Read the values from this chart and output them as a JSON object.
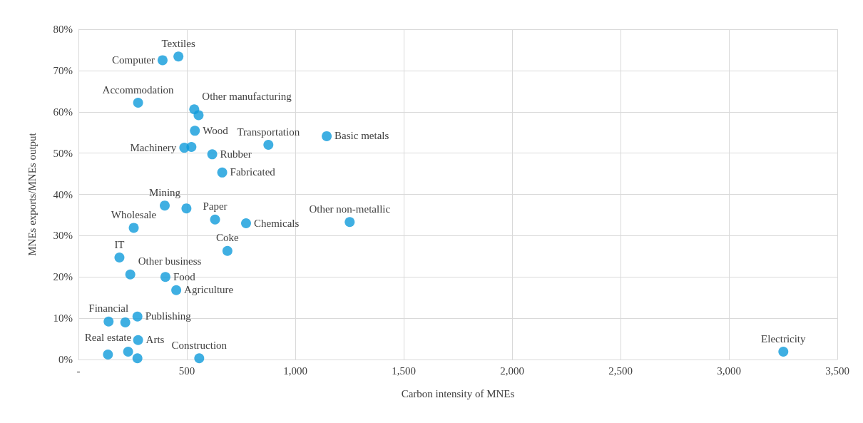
{
  "chart_data": {
    "type": "scatter",
    "xlabel": "Carbon intensity of MNEs",
    "ylabel": "MNEs exports/MNEs output",
    "x": [
      388,
      461,
      275,
      534,
      554,
      537,
      488,
      521,
      617,
      663,
      876,
      1145,
      398,
      498,
      630,
      773,
      1251,
      255,
      687,
      189,
      239,
      401,
      451,
      139,
      272,
      216,
      275,
      136,
      229,
      272,
      557,
      3251
    ],
    "series": [
      {
        "color": "#0f9bdb",
        "values": [
          72.5,
          73.4,
          62.2,
          60.6,
          59.2,
          55.4,
          51.3,
          51.5,
          49.7,
          45.3,
          52.0,
          54.1,
          37.3,
          36.6,
          33.9,
          33.0,
          33.3,
          31.9,
          26.3,
          24.7,
          20.6,
          20.0,
          16.8,
          9.2,
          10.4,
          9.0,
          4.7,
          1.2,
          1.9,
          0.3,
          0.3,
          1.9
        ]
      }
    ],
    "annotations": [
      {
        "text": "Computer",
        "x": 388,
        "y": 72.5
      },
      {
        "text": "Textiles",
        "x": 461,
        "y": 73.4
      },
      {
        "text": "Accommodation",
        "x": 275,
        "y": 62.2
      },
      {
        "text": "Other manufacturing",
        "x": 534,
        "y": 60.6
      },
      {
        "text": "Wood",
        "x": 537,
        "y": 55.4
      },
      {
        "text": "Machinery",
        "x": 488,
        "y": 51.3
      },
      {
        "text": "Rubber",
        "x": 617,
        "y": 49.7
      },
      {
        "text": "Fabricated",
        "x": 663,
        "y": 45.3
      },
      {
        "text": "Transportation",
        "x": 876,
        "y": 52.0
      },
      {
        "text": "Basic metals",
        "x": 1145,
        "y": 54.1
      },
      {
        "text": "Mining",
        "x": 398,
        "y": 37.3
      },
      {
        "text": "Paper",
        "x": 630,
        "y": 33.9
      },
      {
        "text": "Chemicals",
        "x": 773,
        "y": 33.0
      },
      {
        "text": "Other non-metallic",
        "x": 1251,
        "y": 33.3
      },
      {
        "text": "Wholesale",
        "x": 255,
        "y": 31.9
      },
      {
        "text": "Coke",
        "x": 687,
        "y": 26.3
      },
      {
        "text": "IT",
        "x": 189,
        "y": 24.7
      },
      {
        "text": "Other business",
        "x": 239,
        "y": 20.6
      },
      {
        "text": "Food",
        "x": 401,
        "y": 20.0
      },
      {
        "text": "Agriculture",
        "x": 451,
        "y": 16.8
      },
      {
        "text": "Financial",
        "x": 139,
        "y": 9.2
      },
      {
        "text": "Publishing",
        "x": 272,
        "y": 10.4
      },
      {
        "text": "Arts",
        "x": 275,
        "y": 4.7
      },
      {
        "text": "Real estate",
        "x": 136,
        "y": 1.2
      },
      {
        "text": "Construction",
        "x": 557,
        "y": 0.3
      },
      {
        "text": "Electricity",
        "x": 3251,
        "y": 1.9
      }
    ],
    "xlim": [
      0,
      3500
    ],
    "xticks": [
      {
        "value": 0,
        "label": "-"
      },
      500,
      {
        "value": 1000,
        "label": "1,000"
      },
      {
        "value": 1500,
        "label": "1,500"
      },
      {
        "value": 2000,
        "label": "2,000"
      },
      {
        "value": 2500,
        "label": "2,500"
      },
      {
        "value": 3000,
        "label": "3,000"
      },
      {
        "value": 3500,
        "label": "3,500"
      }
    ],
    "ylim": [
      0,
      80
    ],
    "yticks": [
      {
        "value": 0,
        "label": "0%"
      },
      {
        "value": 10,
        "label": "10%"
      },
      {
        "value": 20,
        "label": "20%"
      },
      {
        "value": 30,
        "label": "30%"
      },
      {
        "value": 40,
        "label": "40%"
      },
      {
        "value": 50,
        "label": "50%"
      },
      {
        "value": 60,
        "label": "60%"
      },
      {
        "value": 70,
        "label": "70%"
      },
      {
        "value": 80,
        "label": "80%"
      }
    ],
    "grid": true,
    "marker": "circle"
  }
}
